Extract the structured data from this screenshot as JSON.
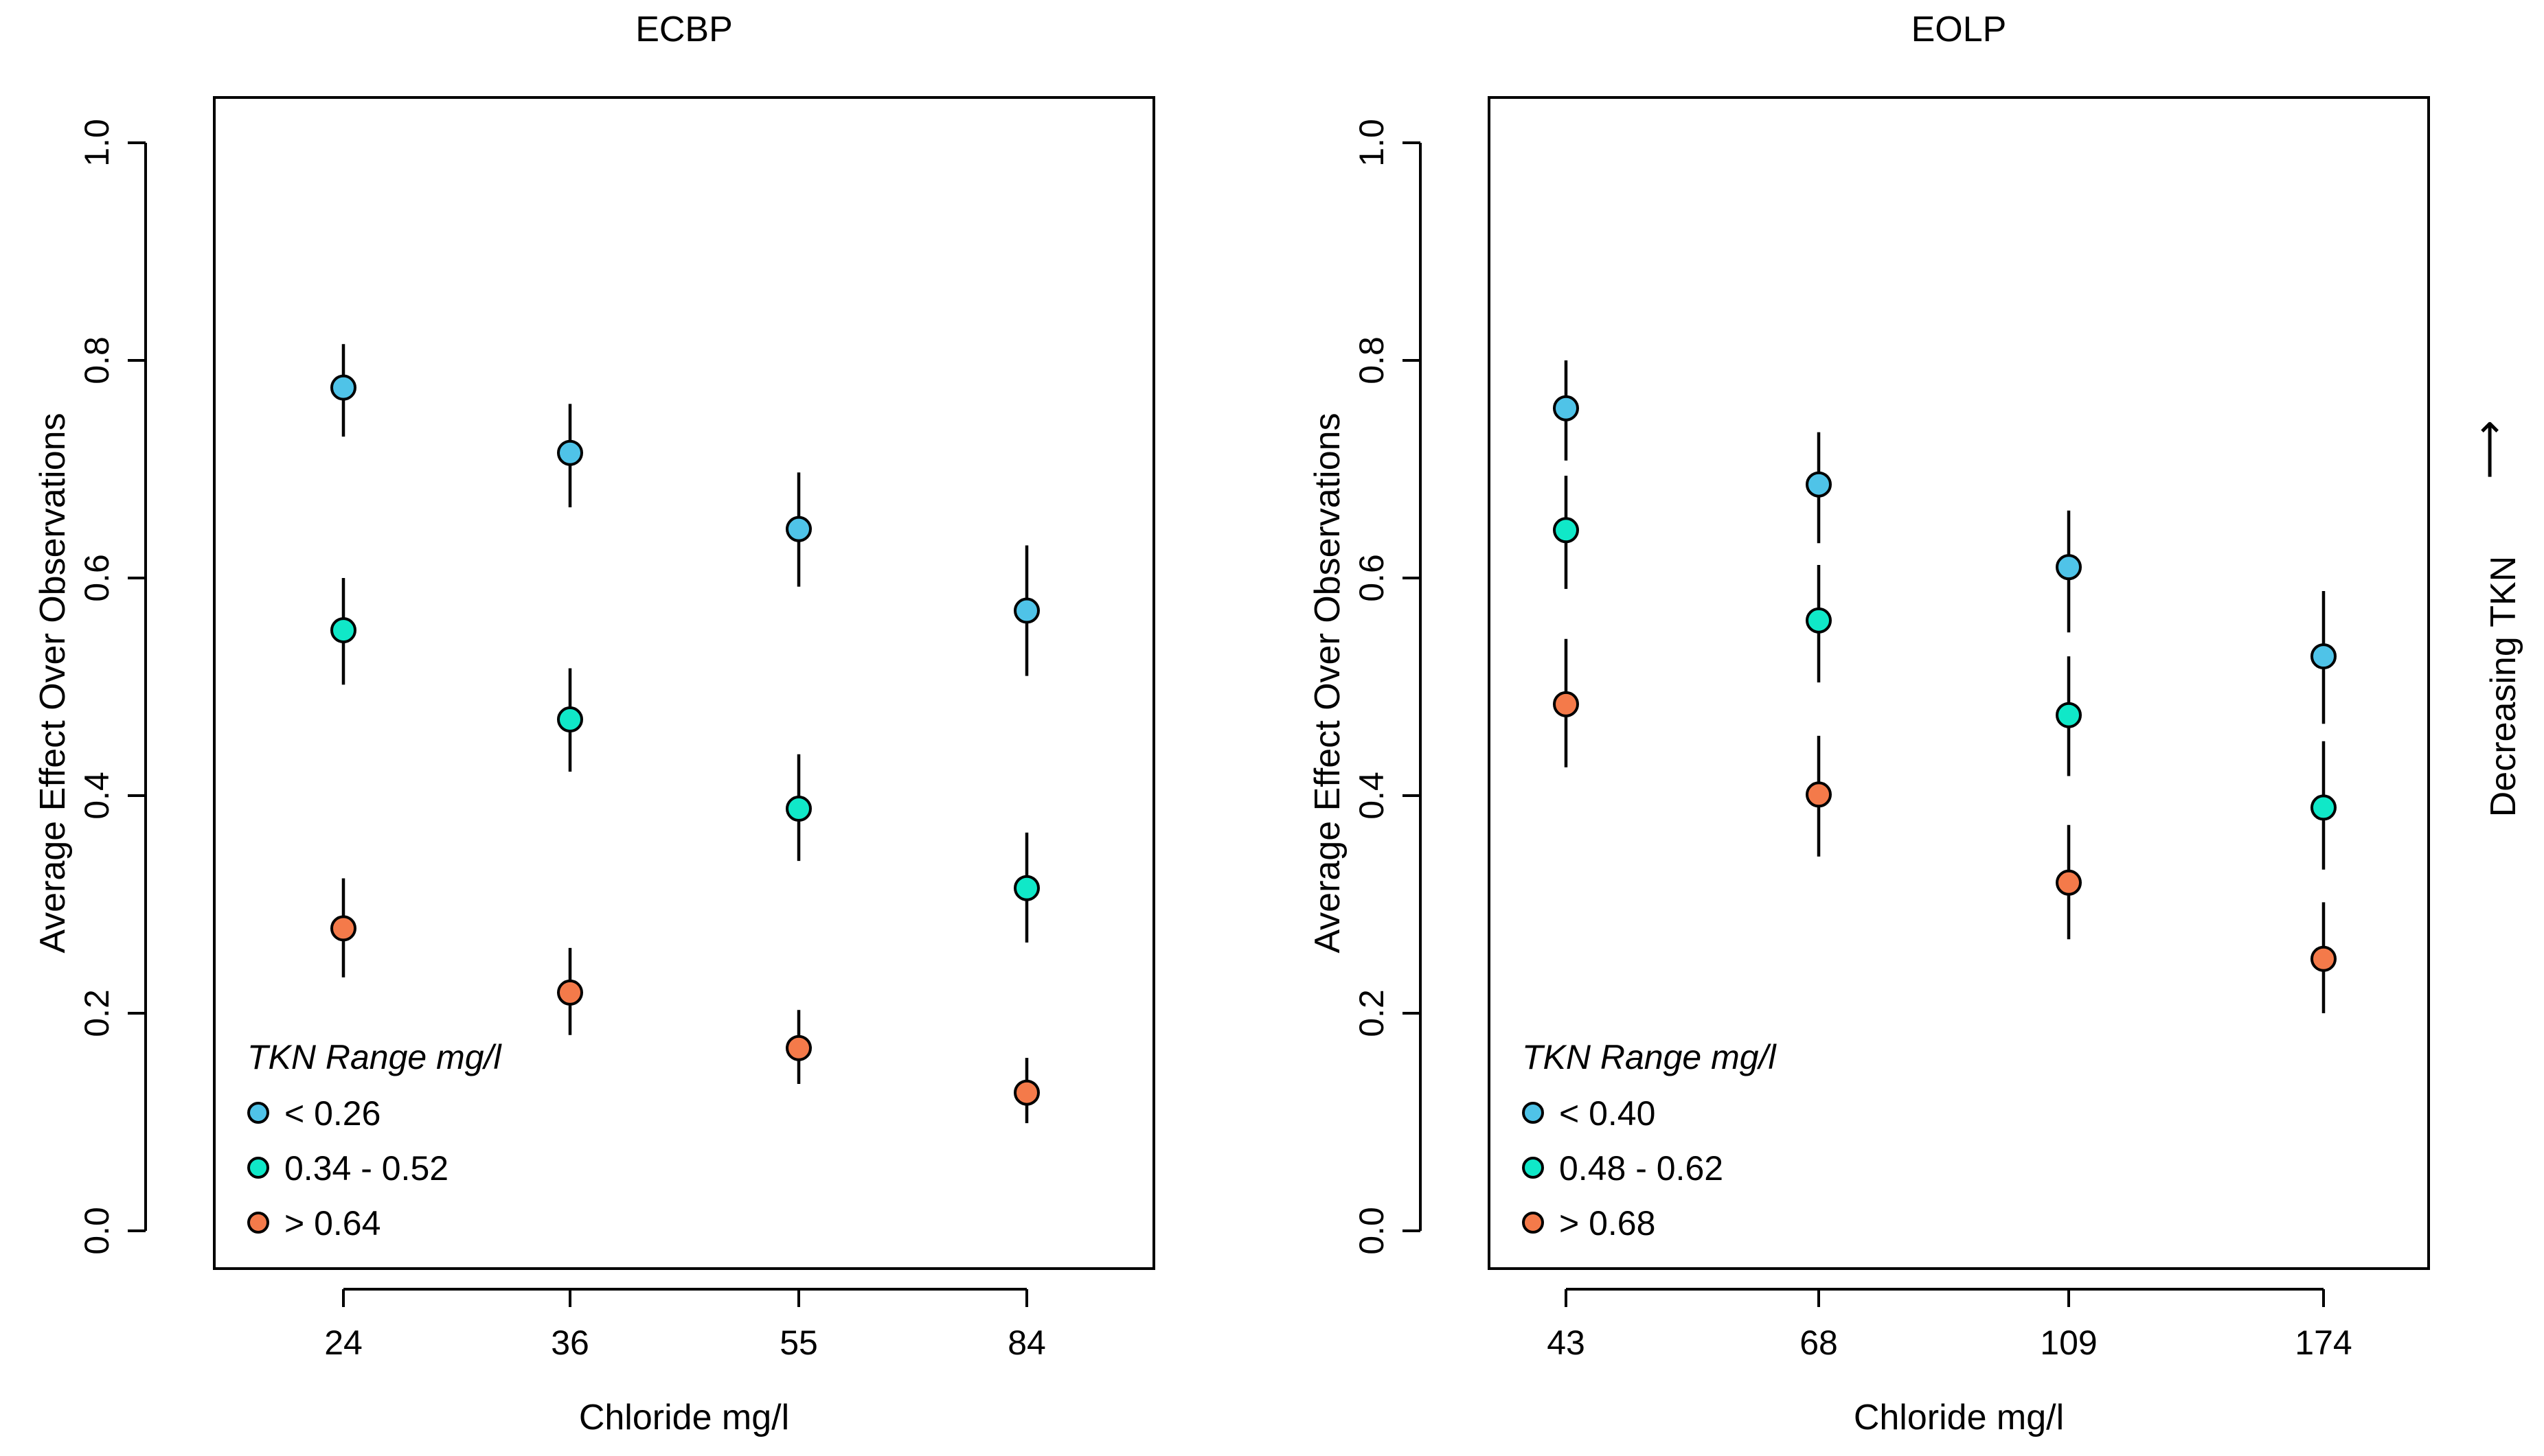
{
  "chart_data": [
    {
      "type": "scatter",
      "title": "ECBP",
      "xlabel": "Chloride mg/l",
      "ylabel": "Average Effect Over Observations",
      "categories": [
        "24",
        "36",
        "55",
        "84"
      ],
      "ylim": [
        0.0,
        1.0
      ],
      "yticks": [
        "0.0",
        "0.2",
        "0.4",
        "0.6",
        "0.8",
        "1.0"
      ],
      "legend_title": "TKN Range mg/l",
      "legend_position": "bottom-left",
      "series": [
        {
          "name": "< 0.26",
          "color": "#4fc3e8",
          "values": [
            0.775,
            0.715,
            0.645,
            0.57
          ],
          "lower": [
            0.73,
            0.665,
            0.592,
            0.51
          ],
          "upper": [
            0.815,
            0.76,
            0.697,
            0.63
          ]
        },
        {
          "name": "0.34 - 0.52",
          "color": "#10e8c8",
          "values": [
            0.552,
            0.47,
            0.388,
            0.315
          ],
          "lower": [
            0.502,
            0.422,
            0.34,
            0.265
          ],
          "upper": [
            0.6,
            0.517,
            0.438,
            0.366
          ]
        },
        {
          "name": "> 0.64",
          "color": "#f47a4a",
          "values": [
            0.278,
            0.219,
            0.168,
            0.127
          ],
          "lower": [
            0.233,
            0.18,
            0.135,
            0.099
          ],
          "upper": [
            0.324,
            0.26,
            0.203,
            0.159
          ]
        }
      ]
    },
    {
      "type": "scatter",
      "title": "EOLP",
      "xlabel": "Chloride mg/l",
      "ylabel": "Average Effect Over Observations",
      "categories": [
        "43",
        "68",
        "109",
        "174"
      ],
      "ylim": [
        0.0,
        1.0
      ],
      "yticks": [
        "0.0",
        "0.2",
        "0.4",
        "0.6",
        "0.8",
        "1.0"
      ],
      "legend_title": "TKN Range mg/l",
      "legend_position": "bottom-left",
      "series": [
        {
          "name": "< 0.40",
          "color": "#4fc3e8",
          "values": [
            0.756,
            0.686,
            0.61,
            0.528
          ],
          "lower": [
            0.708,
            0.632,
            0.55,
            0.466
          ],
          "upper": [
            0.8,
            0.734,
            0.662,
            0.588
          ]
        },
        {
          "name": "0.48 - 0.62",
          "color": "#10e8c8",
          "values": [
            0.644,
            0.561,
            0.474,
            0.389
          ],
          "lower": [
            0.59,
            0.504,
            0.418,
            0.332
          ],
          "upper": [
            0.694,
            0.612,
            0.528,
            0.45
          ]
        },
        {
          "name": "> 0.68",
          "color": "#f47a4a",
          "values": [
            0.484,
            0.401,
            0.32,
            0.25
          ],
          "lower": [
            0.426,
            0.344,
            0.268,
            0.2
          ],
          "upper": [
            0.544,
            0.455,
            0.373,
            0.302
          ]
        }
      ]
    }
  ],
  "side_annotation": {
    "text": "Decreasing TKN",
    "arrow": "⟶"
  }
}
